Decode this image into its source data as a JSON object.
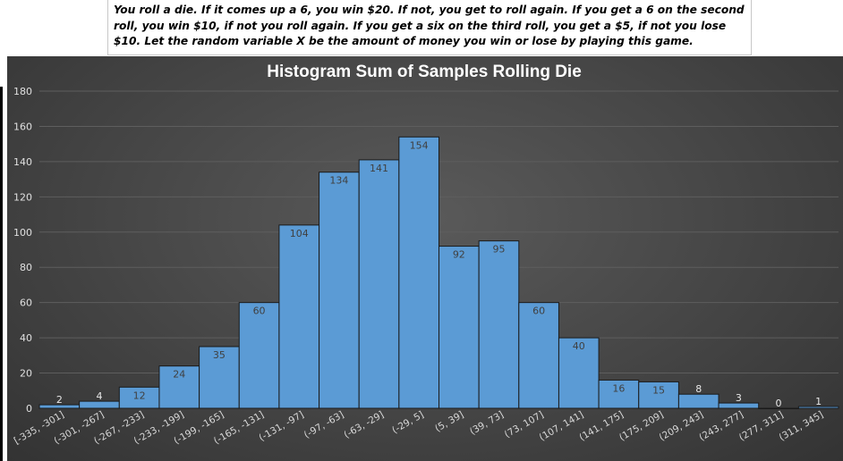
{
  "problem": {
    "text": "You roll a die.  If it comes up a 6, you win $20.  If not, you get to roll again.  If you get a 6 on the second roll, you win $10, if not you roll again.  If you get a six on the third roll, you get a $5, if not you lose $10.  Let the random variable X be the amount of money you win or lose by playing this game."
  },
  "colors": {
    "bar_fill": "#5b9bd5",
    "bar_stroke": "#1a1a1a",
    "background": "#454545",
    "gridline": "#5e5e5e",
    "title": "#ffffff"
  },
  "chart_data": {
    "type": "bar",
    "title": "Histogram Sum of Samples Rolling Die",
    "xlabel": "",
    "ylabel": "",
    "ylim": [
      0,
      180
    ],
    "yticks": [
      0,
      20,
      40,
      60,
      80,
      100,
      120,
      140,
      160,
      180
    ],
    "grid": true,
    "categories": [
      "[-335, -301]",
      "(-301, -267]",
      "(-267, -233]",
      "(-233, -199]",
      "(-199, -165]",
      "(-165, -131]",
      "(-131, -97]",
      "(-97, -63]",
      "(-63, -29]",
      "(-29, 5]",
      "(5, 39]",
      "(39, 73]",
      "(73, 107]",
      "(107, 141]",
      "(141, 175]",
      "(175, 209]",
      "(209, 243]",
      "(243, 277]",
      "(277, 311]",
      "(311, 345]"
    ],
    "values": [
      2,
      4,
      12,
      24,
      35,
      60,
      104,
      134,
      141,
      154,
      92,
      95,
      60,
      40,
      16,
      15,
      8,
      3,
      0,
      1
    ]
  }
}
